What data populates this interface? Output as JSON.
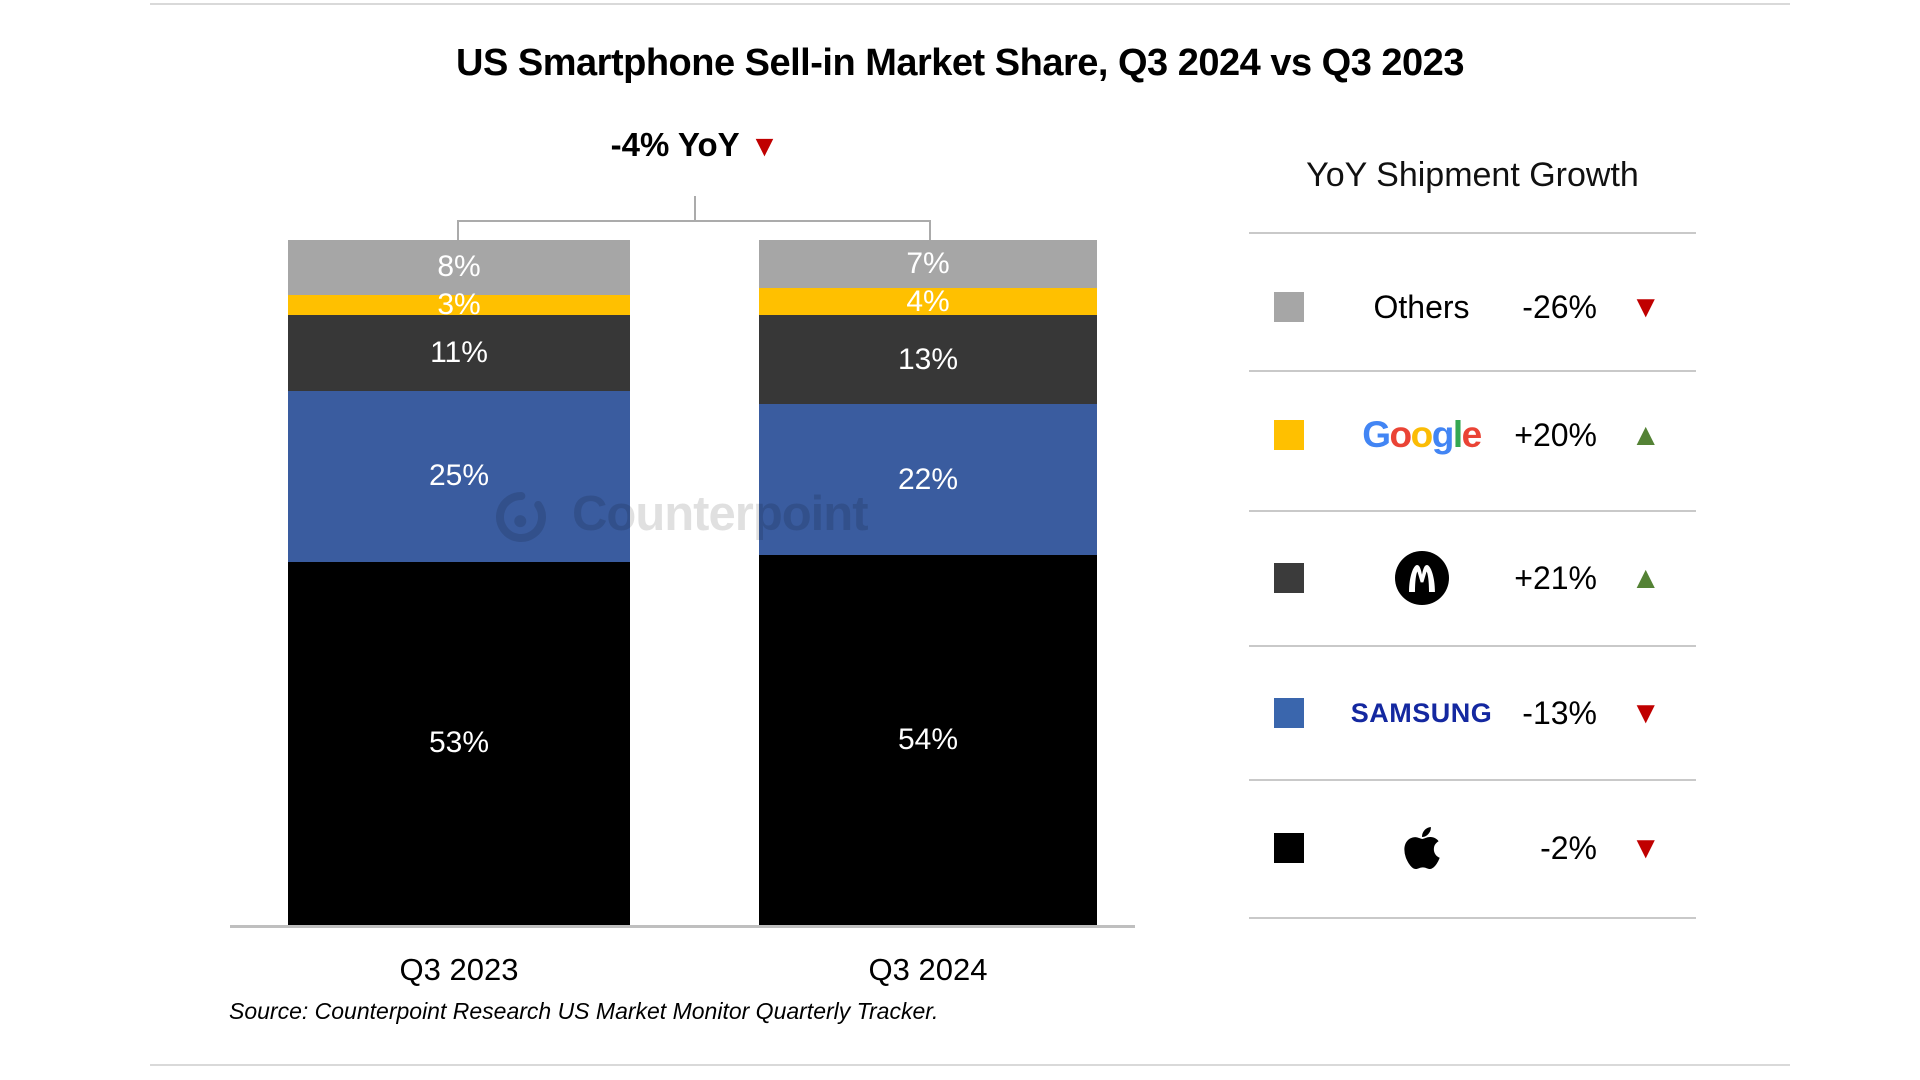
{
  "colors": {
    "down": "#C00000",
    "up": "#548235",
    "samsung_wordmark": "#1428A0",
    "bar_blue": "#3A5C9F",
    "bar_dark": "#373737",
    "bar_gray": "#A6A6A6",
    "bar_yellow": "#FFC000",
    "bar_black": "#000000"
  },
  "page": {
    "title": "US Smartphone Sell-in Market Share, Q3 2024 vs Q3 2023",
    "source": "Source: Counterpoint Research US Market Monitor Quarterly Tracker.",
    "watermark_text": "Counterpoint"
  },
  "annotation": {
    "label": "-4% YoY",
    "triangle": "▼"
  },
  "legend": {
    "title": "YoY Shipment Growth",
    "google": {
      "text": "Google",
      "letter_colors": [
        "#4285F4",
        "#EA4335",
        "#FBBC05",
        "#4285F4",
        "#34A853",
        "#EA4335"
      ]
    },
    "rows": [
      {
        "brand": "Others",
        "swatch": "#A6A6A6",
        "change": "-26%",
        "dir": "down",
        "triangle": "▼"
      },
      {
        "brand": "Google",
        "swatch": "#FFC000",
        "change": "+20%",
        "dir": "up",
        "triangle": "▲"
      },
      {
        "brand": "Motorola",
        "swatch": "#3B3B3B",
        "change": "+21%",
        "dir": "up",
        "triangle": "▲"
      },
      {
        "brand": "Samsung",
        "swatch": "#3A66AD",
        "change": "-13%",
        "dir": "down",
        "triangle": "▼",
        "wordmark": "SAMSUNG"
      },
      {
        "brand": "Apple",
        "swatch": "#000000",
        "change": "-2%",
        "dir": "down",
        "triangle": "▼"
      }
    ]
  },
  "chart_data": {
    "type": "bar",
    "stacked": true,
    "unit": "%",
    "title": "US Smartphone Sell-in Market Share, Q3 2024 vs Q3 2023",
    "categories": [
      "Q3 2023",
      "Q3 2024"
    ],
    "series": [
      {
        "name": "Apple",
        "color": "#000000",
        "values": [
          53,
          54
        ],
        "yoy_growth": "-2%"
      },
      {
        "name": "Samsung",
        "color": "#3A5C9F",
        "values": [
          25,
          22
        ],
        "yoy_growth": "-13%"
      },
      {
        "name": "Motorola",
        "color": "#373737",
        "values": [
          11,
          13
        ],
        "yoy_growth": "+21%"
      },
      {
        "name": "Google",
        "color": "#FFC000",
        "values": [
          3,
          4
        ],
        "yoy_growth": "+20%"
      },
      {
        "name": "Others",
        "color": "#A6A6A6",
        "values": [
          8,
          7
        ],
        "yoy_growth": "-26%"
      }
    ],
    "total_yoy": "-4% YoY",
    "ylim": [
      0,
      100
    ],
    "legend_title": "YoY Shipment Growth",
    "legend_position": "right",
    "source": "Source: Counterpoint Research US Market Monitor Quarterly Tracker."
  }
}
